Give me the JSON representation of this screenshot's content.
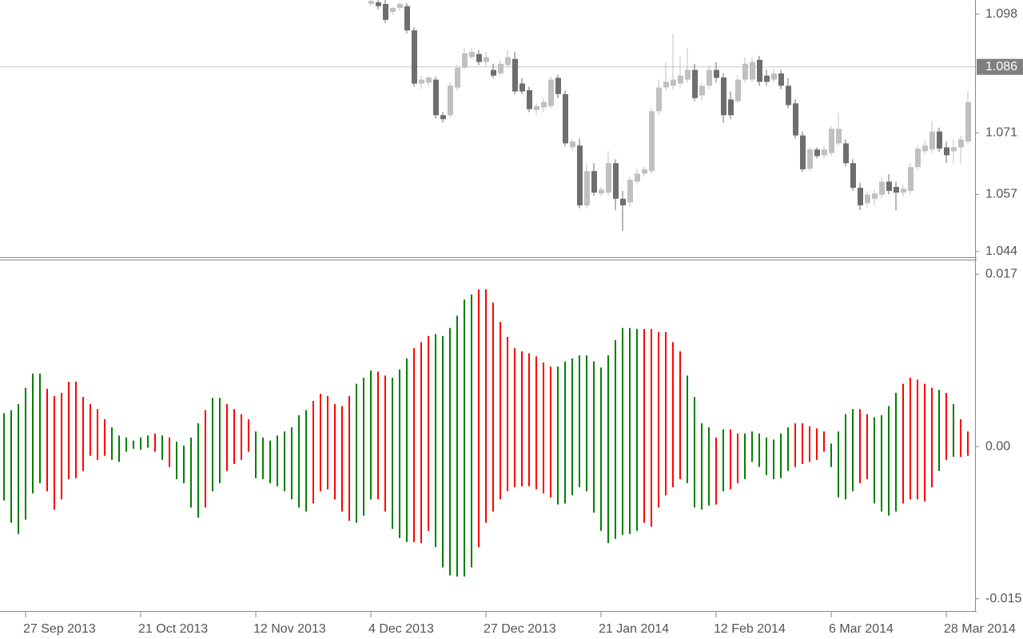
{
  "chart_data": [
    {
      "type": "candlestick",
      "open": [
        null,
        null,
        null,
        null,
        null,
        null,
        null,
        null,
        null,
        null,
        null,
        null,
        null,
        null,
        null,
        null,
        null,
        null,
        null,
        null,
        null,
        null,
        null,
        null,
        null,
        null,
        null,
        null,
        null,
        null,
        null,
        null,
        null,
        null,
        null,
        null,
        null,
        null,
        null,
        null,
        null,
        null,
        null,
        null,
        null,
        null,
        null,
        null,
        null,
        null,
        null,
        1.1003,
        1.1007,
        1.1003,
        1.0985,
        1.0994,
        1.0998,
        1.0943,
        1.0822,
        1.0824,
        1.0831,
        1.075,
        1.075,
        1.0813,
        1.0858,
        1.0882,
        1.0889,
        1.0871,
        1.0853,
        1.0845,
        1.0864,
        1.0878,
        1.0822,
        1.0807,
        1.0762,
        1.0768,
        1.0771,
        1.0835,
        1.0798,
        1.0677,
        1.0681,
        1.0545,
        1.0623,
        1.0572,
        1.0574,
        1.0641,
        1.056,
        1.0552,
        1.0599,
        1.0617,
        1.0623,
        1.0759,
        1.0813,
        1.0817,
        1.0822,
        1.0831,
        1.0853,
        1.0795,
        1.0817,
        1.0853,
        1.0836,
        1.0786,
        1.0782,
        1.0831,
        1.0831,
        1.0876,
        1.084,
        1.0831,
        1.0845,
        1.0817,
        1.0777,
        1.0704,
        1.0628,
        1.0672,
        1.0659,
        1.0664,
        1.0686,
        1.0686,
        1.0641,
        1.0585,
        1.055,
        1.056,
        1.0569,
        1.0599,
        1.0587,
        1.0574,
        1.0578,
        1.0632,
        1.0668,
        1.0672,
        1.0713,
        1.0677,
        1.0668,
        1.0677,
        1.069
      ],
      "high": [
        null,
        null,
        null,
        null,
        null,
        null,
        null,
        null,
        null,
        null,
        null,
        null,
        null,
        null,
        null,
        null,
        null,
        null,
        null,
        null,
        null,
        null,
        null,
        null,
        null,
        null,
        null,
        null,
        null,
        null,
        null,
        null,
        null,
        null,
        null,
        null,
        null,
        null,
        null,
        null,
        null,
        null,
        null,
        null,
        null,
        null,
        null,
        null,
        null,
        null,
        null,
        1.1012,
        1.1012,
        1.1012,
        1.0996,
        1.1007,
        1.1005,
        1.095,
        1.084,
        1.0838,
        1.0838,
        1.0757,
        1.0824,
        1.0865,
        1.0902,
        1.0902,
        1.0898,
        1.0894,
        1.0867,
        1.0876,
        1.0898,
        1.0894,
        1.0835,
        1.0815,
        1.0777,
        1.0788,
        1.0838,
        1.0842,
        1.0806,
        1.0697,
        1.0697,
        1.0641,
        1.0641,
        1.0587,
        1.0668,
        1.065,
        1.0578,
        1.061,
        1.0628,
        1.0634,
        1.0768,
        1.0831,
        1.0871,
        1.0936,
        1.0882,
        1.0902,
        1.0867,
        1.0824,
        1.0864,
        1.0871,
        1.0845,
        1.0804,
        1.084,
        1.0882,
        1.0882,
        1.0885,
        1.0853,
        1.0856,
        1.0853,
        1.0835,
        1.0786,
        1.0713,
        1.0677,
        1.0677,
        1.0681,
        1.0726,
        1.0755,
        1.0695,
        1.065,
        1.0596,
        1.0578,
        1.0581,
        1.061,
        1.0616,
        1.0599,
        1.0592,
        1.0641,
        1.0681,
        1.0693,
        1.0737,
        1.0722,
        1.069,
        1.0695,
        1.0704,
        1.0804
      ],
      "low": [
        null,
        null,
        null,
        null,
        null,
        null,
        null,
        null,
        null,
        null,
        null,
        null,
        null,
        null,
        null,
        null,
        null,
        null,
        null,
        null,
        null,
        null,
        null,
        null,
        null,
        null,
        null,
        null,
        null,
        null,
        null,
        null,
        null,
        null,
        null,
        null,
        null,
        null,
        null,
        null,
        null,
        null,
        null,
        null,
        null,
        null,
        null,
        null,
        null,
        null,
        null,
        1.0998,
        1.099,
        1.096,
        1.0978,
        1.0988,
        1.0936,
        1.0815,
        1.0809,
        1.0817,
        1.0742,
        1.0733,
        1.0744,
        1.0806,
        1.0853,
        1.0878,
        1.0864,
        1.086,
        1.0835,
        1.0838,
        1.0858,
        1.0798,
        1.0798,
        1.0757,
        1.075,
        1.0757,
        1.0766,
        1.0789,
        1.0679,
        1.0668,
        1.0538,
        1.0538,
        1.0567,
        1.0565,
        1.0567,
        1.0534,
        1.0487,
        1.0541,
        1.0592,
        1.061,
        1.0616,
        1.0751,
        1.0807,
        1.0809,
        1.0813,
        1.0824,
        1.0782,
        1.0782,
        1.0809,
        1.0824,
        1.0733,
        1.0741,
        1.0777,
        1.0824,
        1.0824,
        1.0817,
        1.0817,
        1.0824,
        1.0809,
        1.0766,
        1.0697,
        1.0621,
        1.0623,
        1.0652,
        1.0652,
        1.0657,
        1.0679,
        1.0634,
        1.0578,
        1.0534,
        1.0541,
        1.0545,
        1.0561,
        1.057,
        1.0534,
        1.0565,
        1.057,
        1.0625,
        1.0661,
        1.0664,
        1.0666,
        1.0641,
        1.0641,
        1.0641,
        1.0683
      ],
      "close": [
        null,
        null,
        null,
        null,
        null,
        null,
        null,
        null,
        null,
        null,
        null,
        null,
        null,
        null,
        null,
        null,
        null,
        null,
        null,
        null,
        null,
        null,
        null,
        null,
        null,
        null,
        null,
        null,
        null,
        null,
        null,
        null,
        null,
        null,
        null,
        null,
        null,
        null,
        null,
        null,
        null,
        null,
        null,
        null,
        null,
        null,
        null,
        null,
        null,
        null,
        null,
        1.101,
        1.0998,
        1.0967,
        1.0994,
        1.1003,
        1.0943,
        1.0822,
        1.0831,
        1.0836,
        1.075,
        1.0741,
        1.0817,
        1.0858,
        1.0891,
        1.0894,
        1.0871,
        1.0882,
        1.084,
        1.0867,
        1.0882,
        1.0804,
        1.0804,
        1.0764,
        1.0771,
        1.078,
        1.0831,
        1.0798,
        1.0686,
        1.069,
        1.0545,
        1.0623,
        1.0574,
        1.0581,
        1.0641,
        1.056,
        1.0545,
        1.0603,
        1.0617,
        1.0627,
        1.0759,
        1.0813,
        1.0826,
        1.0831,
        1.084,
        1.0853,
        1.0789,
        1.0817,
        1.0853,
        1.0835,
        1.075,
        1.075,
        1.0831,
        1.0867,
        1.0871,
        1.0826,
        1.0826,
        1.0845,
        1.0817,
        1.0773,
        1.0704,
        1.0627,
        1.0672,
        1.0657,
        1.0672,
        1.0719,
        1.0719,
        1.0641,
        1.0585,
        1.0545,
        1.0569,
        1.0572,
        1.0599,
        1.0578,
        1.0574,
        1.0583,
        1.0632,
        1.0674,
        1.0681,
        1.0713,
        1.0674,
        1.0659,
        1.0677,
        1.0695,
        1.078
      ],
      "up_color": "#c0c0c0",
      "down_color": "#6e6e6e",
      "ylim": [
        1.0429,
        1.1012
      ],
      "yticks": [
        1.044,
        1.057,
        1.071,
        1.098
      ],
      "current_price": 1.086
    },
    {
      "type": "range_bar",
      "categories": [
        null,
        null,
        null,
        "27 Sep 2013",
        null,
        null,
        null,
        null,
        null,
        null,
        null,
        null,
        null,
        null,
        null,
        null,
        null,
        null,
        null,
        "21 Oct 2013",
        null,
        null,
        null,
        null,
        null,
        null,
        null,
        null,
        null,
        null,
        null,
        null,
        null,
        null,
        null,
        "12 Nov 2013",
        null,
        null,
        null,
        null,
        null,
        null,
        null,
        null,
        null,
        null,
        null,
        null,
        null,
        null,
        null,
        "4 Dec 2013",
        null,
        null,
        null,
        null,
        null,
        null,
        null,
        null,
        null,
        null,
        null,
        null,
        null,
        null,
        null,
        "27 Dec 2013",
        null,
        null,
        null,
        null,
        null,
        null,
        null,
        null,
        null,
        null,
        null,
        null,
        null,
        null,
        null,
        "21 Jan 2014",
        null,
        null,
        null,
        null,
        null,
        null,
        null,
        null,
        null,
        null,
        null,
        null,
        null,
        null,
        null,
        "12 Feb 2014",
        null,
        null,
        null,
        null,
        null,
        null,
        null,
        null,
        null,
        null,
        null,
        null,
        null,
        null,
        null,
        "6 Mar 2014",
        null,
        null,
        null,
        null,
        null,
        null,
        null,
        null,
        null,
        null,
        null,
        null,
        null,
        null,
        null,
        "28 Mar 2014",
        null,
        null,
        null
      ],
      "upper": [
        0.0033,
        0.0036,
        0.0042,
        0.0058,
        0.0072,
        0.0072,
        0.0057,
        0.005,
        0.0053,
        0.0064,
        0.0064,
        0.0049,
        0.0042,
        0.0037,
        0.0027,
        0.0019,
        0.0011,
        0.0009,
        0.0006,
        0.0009,
        0.0011,
        0.0013,
        0.0011,
        0.0009,
        0.0005,
        0.0001,
        0.0009,
        0.0023,
        0.0036,
        0.0048,
        0.0048,
        0.0042,
        0.0037,
        0.0032,
        0.0027,
        0.0015,
        0.0009,
        0.0006,
        0.0011,
        0.0015,
        0.0019,
        0.0031,
        0.0036,
        0.0045,
        0.0052,
        0.005,
        0.0042,
        0.004,
        0.005,
        0.0062,
        0.0068,
        0.0075,
        0.0074,
        0.007,
        0.0068,
        0.0076,
        0.0087,
        0.0097,
        0.0103,
        0.0109,
        0.0111,
        0.0109,
        0.0117,
        0.0129,
        0.0145,
        0.015,
        0.0155,
        0.0155,
        0.0142,
        0.0123,
        0.0108,
        0.0097,
        0.0094,
        0.0092,
        0.0089,
        0.0083,
        0.0079,
        0.0079,
        0.0084,
        0.0087,
        0.009,
        0.009,
        0.0084,
        0.0078,
        0.009,
        0.0105,
        0.0117,
        0.0117,
        0.0116,
        0.0116,
        0.0116,
        0.0113,
        0.0113,
        0.0103,
        0.0094,
        0.007,
        0.0049,
        0.0023,
        0.0019,
        0.0009,
        0.0017,
        0.0017,
        0.0013,
        0.0013,
        0.0015,
        0.0013,
        0.0009,
        0.0007,
        0.0013,
        0.0019,
        0.0023,
        0.0023,
        0.002,
        0.0018,
        0.0015,
        0.0003,
        0.0015,
        0.0032,
        0.0037,
        0.0037,
        0.0032,
        0.0029,
        0.0031,
        0.004,
        0.0053,
        0.0062,
        0.0068,
        0.0066,
        0.0062,
        0.0058,
        0.0056,
        0.0053,
        0.0042,
        0.0027,
        0.0015
      ],
      "lower": [
        -0.0053,
        -0.0075,
        -0.0086,
        -0.0072,
        -0.0046,
        -0.0036,
        -0.0044,
        -0.0062,
        -0.0052,
        -0.0032,
        -0.0031,
        -0.0024,
        -0.0009,
        -0.0013,
        -0.0009,
        -0.0013,
        -0.0015,
        -0.0005,
        -0.0002,
        -0.0003,
        -0.0001,
        -0.0005,
        -0.0013,
        -0.002,
        -0.0032,
        -0.0036,
        -0.006,
        -0.007,
        -0.006,
        -0.0044,
        -0.0036,
        -0.0024,
        -0.0017,
        -0.0013,
        -0.0005,
        -0.0031,
        -0.0032,
        -0.0036,
        -0.0039,
        -0.0044,
        -0.0052,
        -0.006,
        -0.0064,
        -0.0056,
        -0.0044,
        -0.0042,
        -0.0052,
        -0.0064,
        -0.0073,
        -0.0075,
        -0.0068,
        -0.0052,
        -0.0052,
        -0.0064,
        -0.0081,
        -0.009,
        -0.0094,
        -0.0094,
        -0.0095,
        -0.0083,
        -0.0099,
        -0.0119,
        -0.0127,
        -0.0128,
        -0.0128,
        -0.0119,
        -0.0099,
        -0.0075,
        -0.0064,
        -0.0052,
        -0.0044,
        -0.004,
        -0.0039,
        -0.0039,
        -0.0042,
        -0.0046,
        -0.005,
        -0.0057,
        -0.0056,
        -0.0048,
        -0.004,
        -0.0044,
        -0.0065,
        -0.0083,
        -0.0095,
        -0.0091,
        -0.0087,
        -0.0086,
        -0.0083,
        -0.0075,
        -0.0079,
        -0.006,
        -0.0048,
        -0.004,
        -0.0032,
        -0.0036,
        -0.006,
        -0.0062,
        -0.0058,
        -0.0057,
        -0.0044,
        -0.0042,
        -0.0036,
        -0.0032,
        -0.0015,
        -0.002,
        -0.0028,
        -0.0032,
        -0.0031,
        -0.0024,
        -0.002,
        -0.0017,
        -0.0015,
        -0.0013,
        -0.0005,
        -0.002,
        -0.005,
        -0.0052,
        -0.0044,
        -0.0036,
        -0.0032,
        -0.0056,
        -0.0064,
        -0.0068,
        -0.0064,
        -0.0056,
        -0.0052,
        -0.0052,
        -0.0054,
        -0.004,
        -0.0024,
        -0.0013,
        -0.001,
        -0.001,
        -0.0009
      ],
      "colors": [
        "green",
        "green",
        "green",
        "green",
        "green",
        "green",
        "red",
        "red",
        "red",
        "red",
        "red",
        "red",
        "red",
        "red",
        "red",
        "green",
        "green",
        "green",
        "green",
        "green",
        "green",
        "red",
        "green",
        "red",
        "green",
        "green",
        "green",
        "green",
        "red",
        "green",
        "green",
        "red",
        "red",
        "red",
        "red",
        "green",
        "green",
        "green",
        "green",
        "green",
        "green",
        "green",
        "green",
        "red",
        "red",
        "red",
        "red",
        "red",
        "red",
        "green",
        "green",
        "green",
        "red",
        "red",
        "green",
        "green",
        "green",
        "red",
        "red",
        "red",
        "green",
        "green",
        "green",
        "green",
        "green",
        "green",
        "red",
        "red",
        "red",
        "red",
        "red",
        "red",
        "red",
        "red",
        "red",
        "red",
        "red",
        "green",
        "green",
        "green",
        "green",
        "green",
        "green",
        "green",
        "green",
        "green",
        "green",
        "green",
        "green",
        "red",
        "red",
        "red",
        "red",
        "red",
        "red",
        "green",
        "green",
        "green",
        "green",
        "red",
        "green",
        "red",
        "red",
        "green",
        "green",
        "green",
        "green",
        "green",
        "green",
        "green",
        "red",
        "red",
        "red",
        "red",
        "red",
        "green",
        "green",
        "green",
        "green",
        "red",
        "red",
        "green",
        "green",
        "green",
        "green",
        "red",
        "red",
        "red",
        "red",
        "red",
        "green",
        "red",
        "green",
        "red",
        "red"
      ],
      "ylim": [
        -0.0162,
        0.0182
      ],
      "yticks": [
        0.017,
        {
          "value": 0,
          "label": "0.00"
        },
        -0.015
      ]
    }
  ]
}
